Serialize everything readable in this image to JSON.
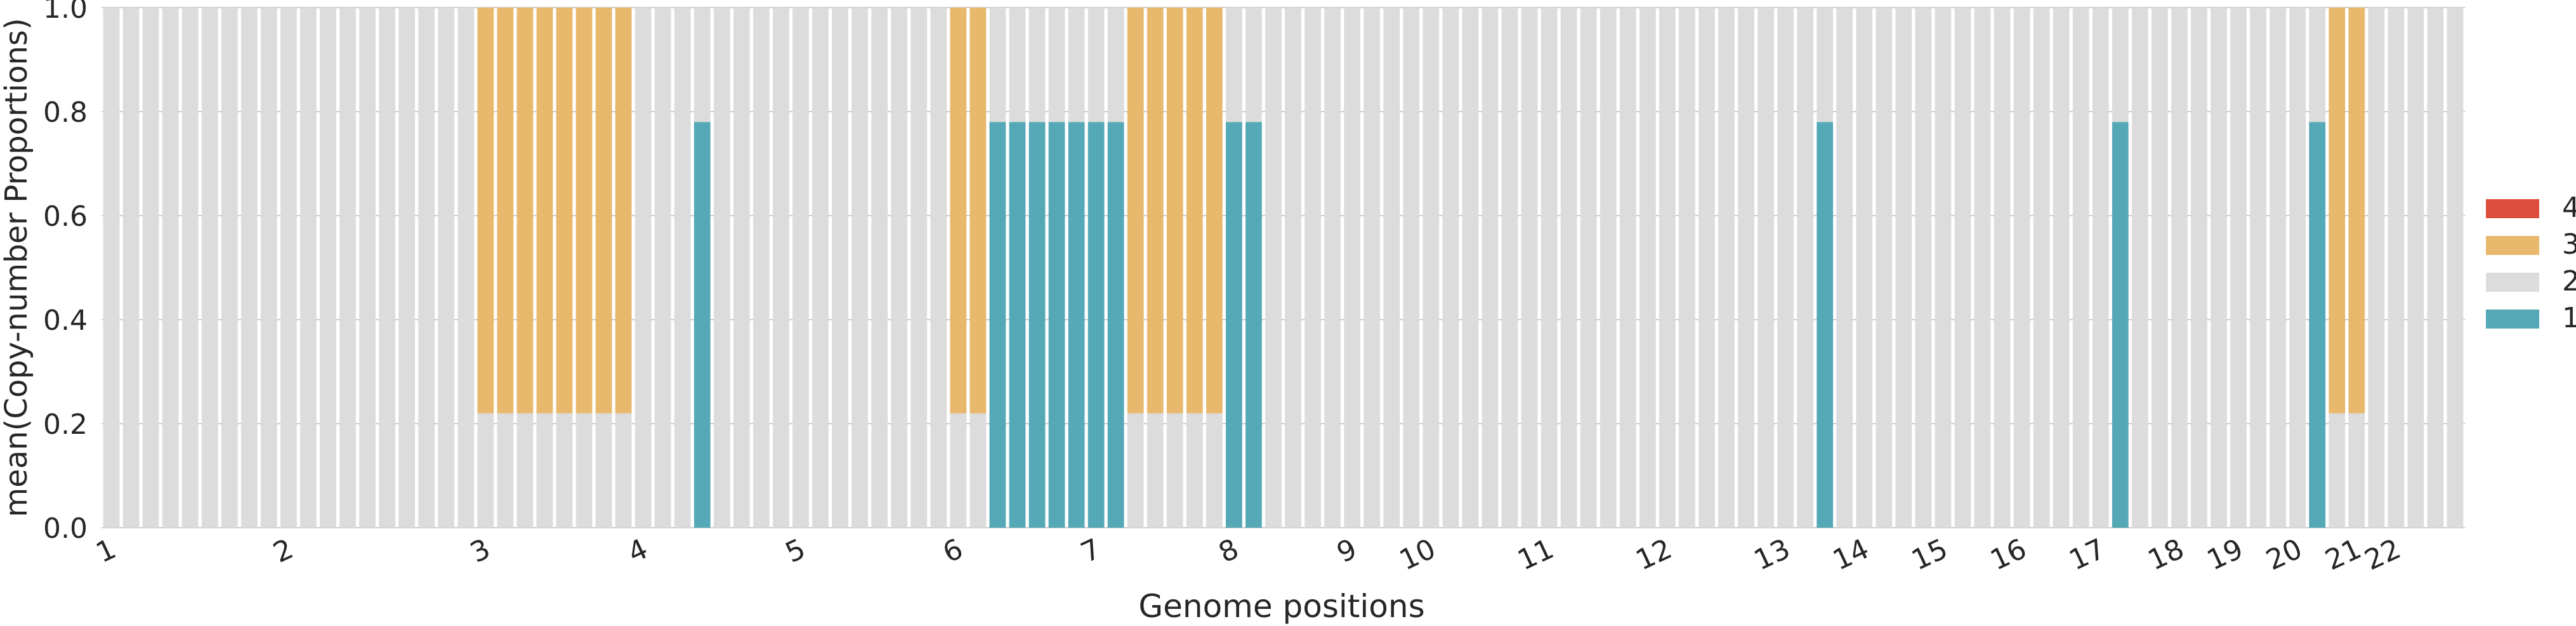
{
  "chart_data": {
    "type": "bar",
    "stacked": true,
    "title": "",
    "xlabel": "Genome positions",
    "ylabel": "mean(Copy-number Proportions)",
    "ylim": [
      0,
      1.0
    ],
    "yticks": [
      "0.0",
      "0.2",
      "0.4",
      "0.6",
      "0.8",
      "1.0"
    ],
    "grid": true,
    "legend_position": "right",
    "bin_count": 120,
    "series": [
      {
        "name": "1",
        "color": "#55a9b7",
        "bins": [
          [
            30,
            30
          ],
          [
            45,
            51
          ],
          [
            57,
            58
          ],
          [
            87,
            87
          ],
          [
            102,
            102
          ],
          [
            112,
            112
          ]
        ],
        "value": 0.78
      },
      {
        "name": "2",
        "color": "#dcdcdc",
        "base": 1.0
      },
      {
        "name": "3",
        "color": "#e8b86c",
        "bins": [
          [
            19,
            26
          ],
          [
            43,
            44
          ],
          [
            51,
            57
          ],
          [
            113,
            114
          ]
        ],
        "value": 0.78
      },
      {
        "name": "4",
        "color": "#dd4e3e",
        "bins": [],
        "value": 0
      }
    ],
    "legend_order": [
      "4",
      "3",
      "2",
      "1"
    ],
    "chromosome_labels": [
      {
        "label": "1",
        "bin": 0
      },
      {
        "label": "2",
        "bin": 9
      },
      {
        "label": "3",
        "bin": 19
      },
      {
        "label": "4",
        "bin": 27
      },
      {
        "label": "5",
        "bin": 35
      },
      {
        "label": "6",
        "bin": 43
      },
      {
        "label": "7",
        "bin": 50
      },
      {
        "label": "8",
        "bin": 57
      },
      {
        "label": "9",
        "bin": 63
      },
      {
        "label": "10",
        "bin": 67
      },
      {
        "label": "11",
        "bin": 73
      },
      {
        "label": "12",
        "bin": 79
      },
      {
        "label": "13",
        "bin": 85
      },
      {
        "label": "14",
        "bin": 89
      },
      {
        "label": "15",
        "bin": 93
      },
      {
        "label": "16",
        "bin": 97
      },
      {
        "label": "17",
        "bin": 101
      },
      {
        "label": "18",
        "bin": 105
      },
      {
        "label": "19",
        "bin": 108
      },
      {
        "label": "20",
        "bin": 111
      },
      {
        "label": "21",
        "bin": 114
      },
      {
        "label": "22",
        "bin": 116
      }
    ]
  }
}
